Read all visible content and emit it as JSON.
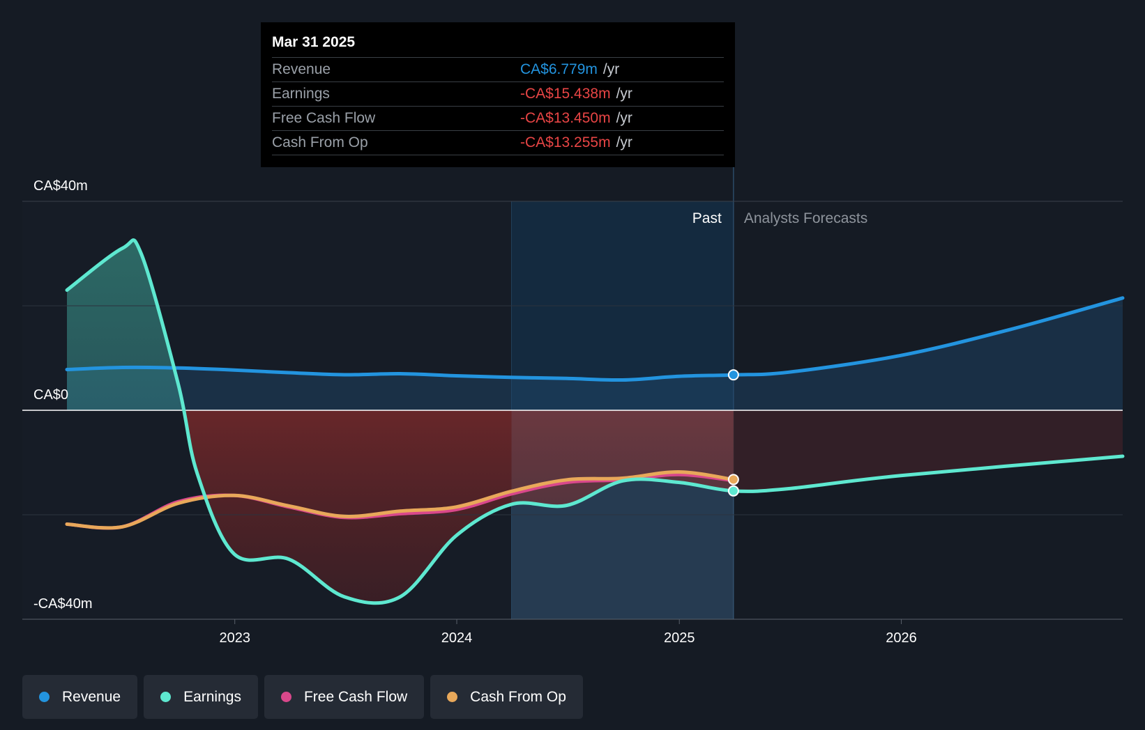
{
  "tooltip": {
    "date": "Mar 31 2025",
    "rows": [
      {
        "name": "Revenue",
        "value": "CA$6.779m",
        "unit": "/yr",
        "color": "#2394df"
      },
      {
        "name": "Earnings",
        "value": "-CA$15.438m",
        "unit": "/yr",
        "color": "#e84545"
      },
      {
        "name": "Free Cash Flow",
        "value": "-CA$13.450m",
        "unit": "/yr",
        "color": "#e84545"
      },
      {
        "name": "Cash From Op",
        "value": "-CA$13.255m",
        "unit": "/yr",
        "color": "#e84545"
      }
    ]
  },
  "legend": [
    {
      "label": "Revenue",
      "color": "#2394df"
    },
    {
      "label": "Earnings",
      "color": "#5ee8d0"
    },
    {
      "label": "Free Cash Flow",
      "color": "#d9488b"
    },
    {
      "label": "Cash From Op",
      "color": "#e8a85a"
    }
  ],
  "chart_data": {
    "type": "line",
    "x_type": "date",
    "x_ticks": [
      "2023",
      "2024",
      "2025",
      "2026"
    ],
    "y_tick_labels": [
      "CA$40m",
      "CA$0",
      "-CA$40m"
    ],
    "ylim": [
      -40,
      40
    ],
    "past_label": "Past",
    "forecast_label": "Analysts Forecasts",
    "past_end": "2025-03-31",
    "highlight_start": "2024-03-31",
    "grid": true,
    "series": [
      {
        "name": "Revenue",
        "color": "#2394df",
        "points": [
          [
            "2022-03-31",
            7.8
          ],
          [
            "2022-06-30",
            8.2
          ],
          [
            "2022-09-30",
            8.1
          ],
          [
            "2022-12-31",
            7.7
          ],
          [
            "2023-03-31",
            7.2
          ],
          [
            "2023-06-30",
            6.8
          ],
          [
            "2023-09-30",
            7.0
          ],
          [
            "2023-12-31",
            6.6
          ],
          [
            "2024-03-31",
            6.3
          ],
          [
            "2024-06-30",
            6.1
          ],
          [
            "2024-09-30",
            5.8
          ],
          [
            "2024-12-31",
            6.5
          ],
          [
            "2025-03-31",
            6.779
          ],
          [
            "2025-06-30",
            7.3
          ],
          [
            "2025-12-31",
            10.5
          ],
          [
            "2026-06-30",
            15.5
          ],
          [
            "2026-12-31",
            21.5
          ]
        ]
      },
      {
        "name": "Earnings",
        "color": "#5ee8d0",
        "points": [
          [
            "2022-03-31",
            23.0
          ],
          [
            "2022-06-30",
            31.0
          ],
          [
            "2022-07-31",
            30.0
          ],
          [
            "2022-09-30",
            5.0
          ],
          [
            "2022-10-31",
            -12.0
          ],
          [
            "2022-12-31",
            -27.5
          ],
          [
            "2023-03-31",
            -28.5
          ],
          [
            "2023-06-30",
            -35.7
          ],
          [
            "2023-09-30",
            -35.7
          ],
          [
            "2023-12-31",
            -24.0
          ],
          [
            "2024-03-31",
            -18.0
          ],
          [
            "2024-06-30",
            -18.2
          ],
          [
            "2024-09-30",
            -13.5
          ],
          [
            "2024-12-31",
            -13.8
          ],
          [
            "2025-03-31",
            -15.438
          ],
          [
            "2025-06-30",
            -15.0
          ],
          [
            "2025-12-31",
            -12.5
          ],
          [
            "2026-12-31",
            -8.8
          ]
        ]
      },
      {
        "name": "Free Cash Flow",
        "color": "#d9488b",
        "points": [
          [
            "2022-03-31",
            -21.8
          ],
          [
            "2022-06-30",
            -22.3
          ],
          [
            "2022-09-30",
            -17.5
          ],
          [
            "2022-12-31",
            -16.3
          ],
          [
            "2023-03-31",
            -18.5
          ],
          [
            "2023-06-30",
            -20.5
          ],
          [
            "2023-09-30",
            -19.8
          ],
          [
            "2023-12-31",
            -19.0
          ],
          [
            "2024-03-31",
            -16.0
          ],
          [
            "2024-06-30",
            -13.8
          ],
          [
            "2024-09-30",
            -13.3
          ],
          [
            "2024-12-31",
            -12.3
          ],
          [
            "2025-03-31",
            -13.45
          ]
        ]
      },
      {
        "name": "Cash From Op",
        "color": "#e8a85a",
        "points": [
          [
            "2022-03-31",
            -21.8
          ],
          [
            "2022-06-30",
            -22.3
          ],
          [
            "2022-09-30",
            -17.8
          ],
          [
            "2022-12-31",
            -16.3
          ],
          [
            "2023-03-31",
            -18.3
          ],
          [
            "2023-06-30",
            -20.3
          ],
          [
            "2023-09-30",
            -19.3
          ],
          [
            "2023-12-31",
            -18.5
          ],
          [
            "2024-03-31",
            -15.5
          ],
          [
            "2024-06-30",
            -13.3
          ],
          [
            "2024-09-30",
            -13.0
          ],
          [
            "2024-12-31",
            -11.8
          ],
          [
            "2025-03-31",
            -13.255
          ]
        ]
      }
    ]
  }
}
